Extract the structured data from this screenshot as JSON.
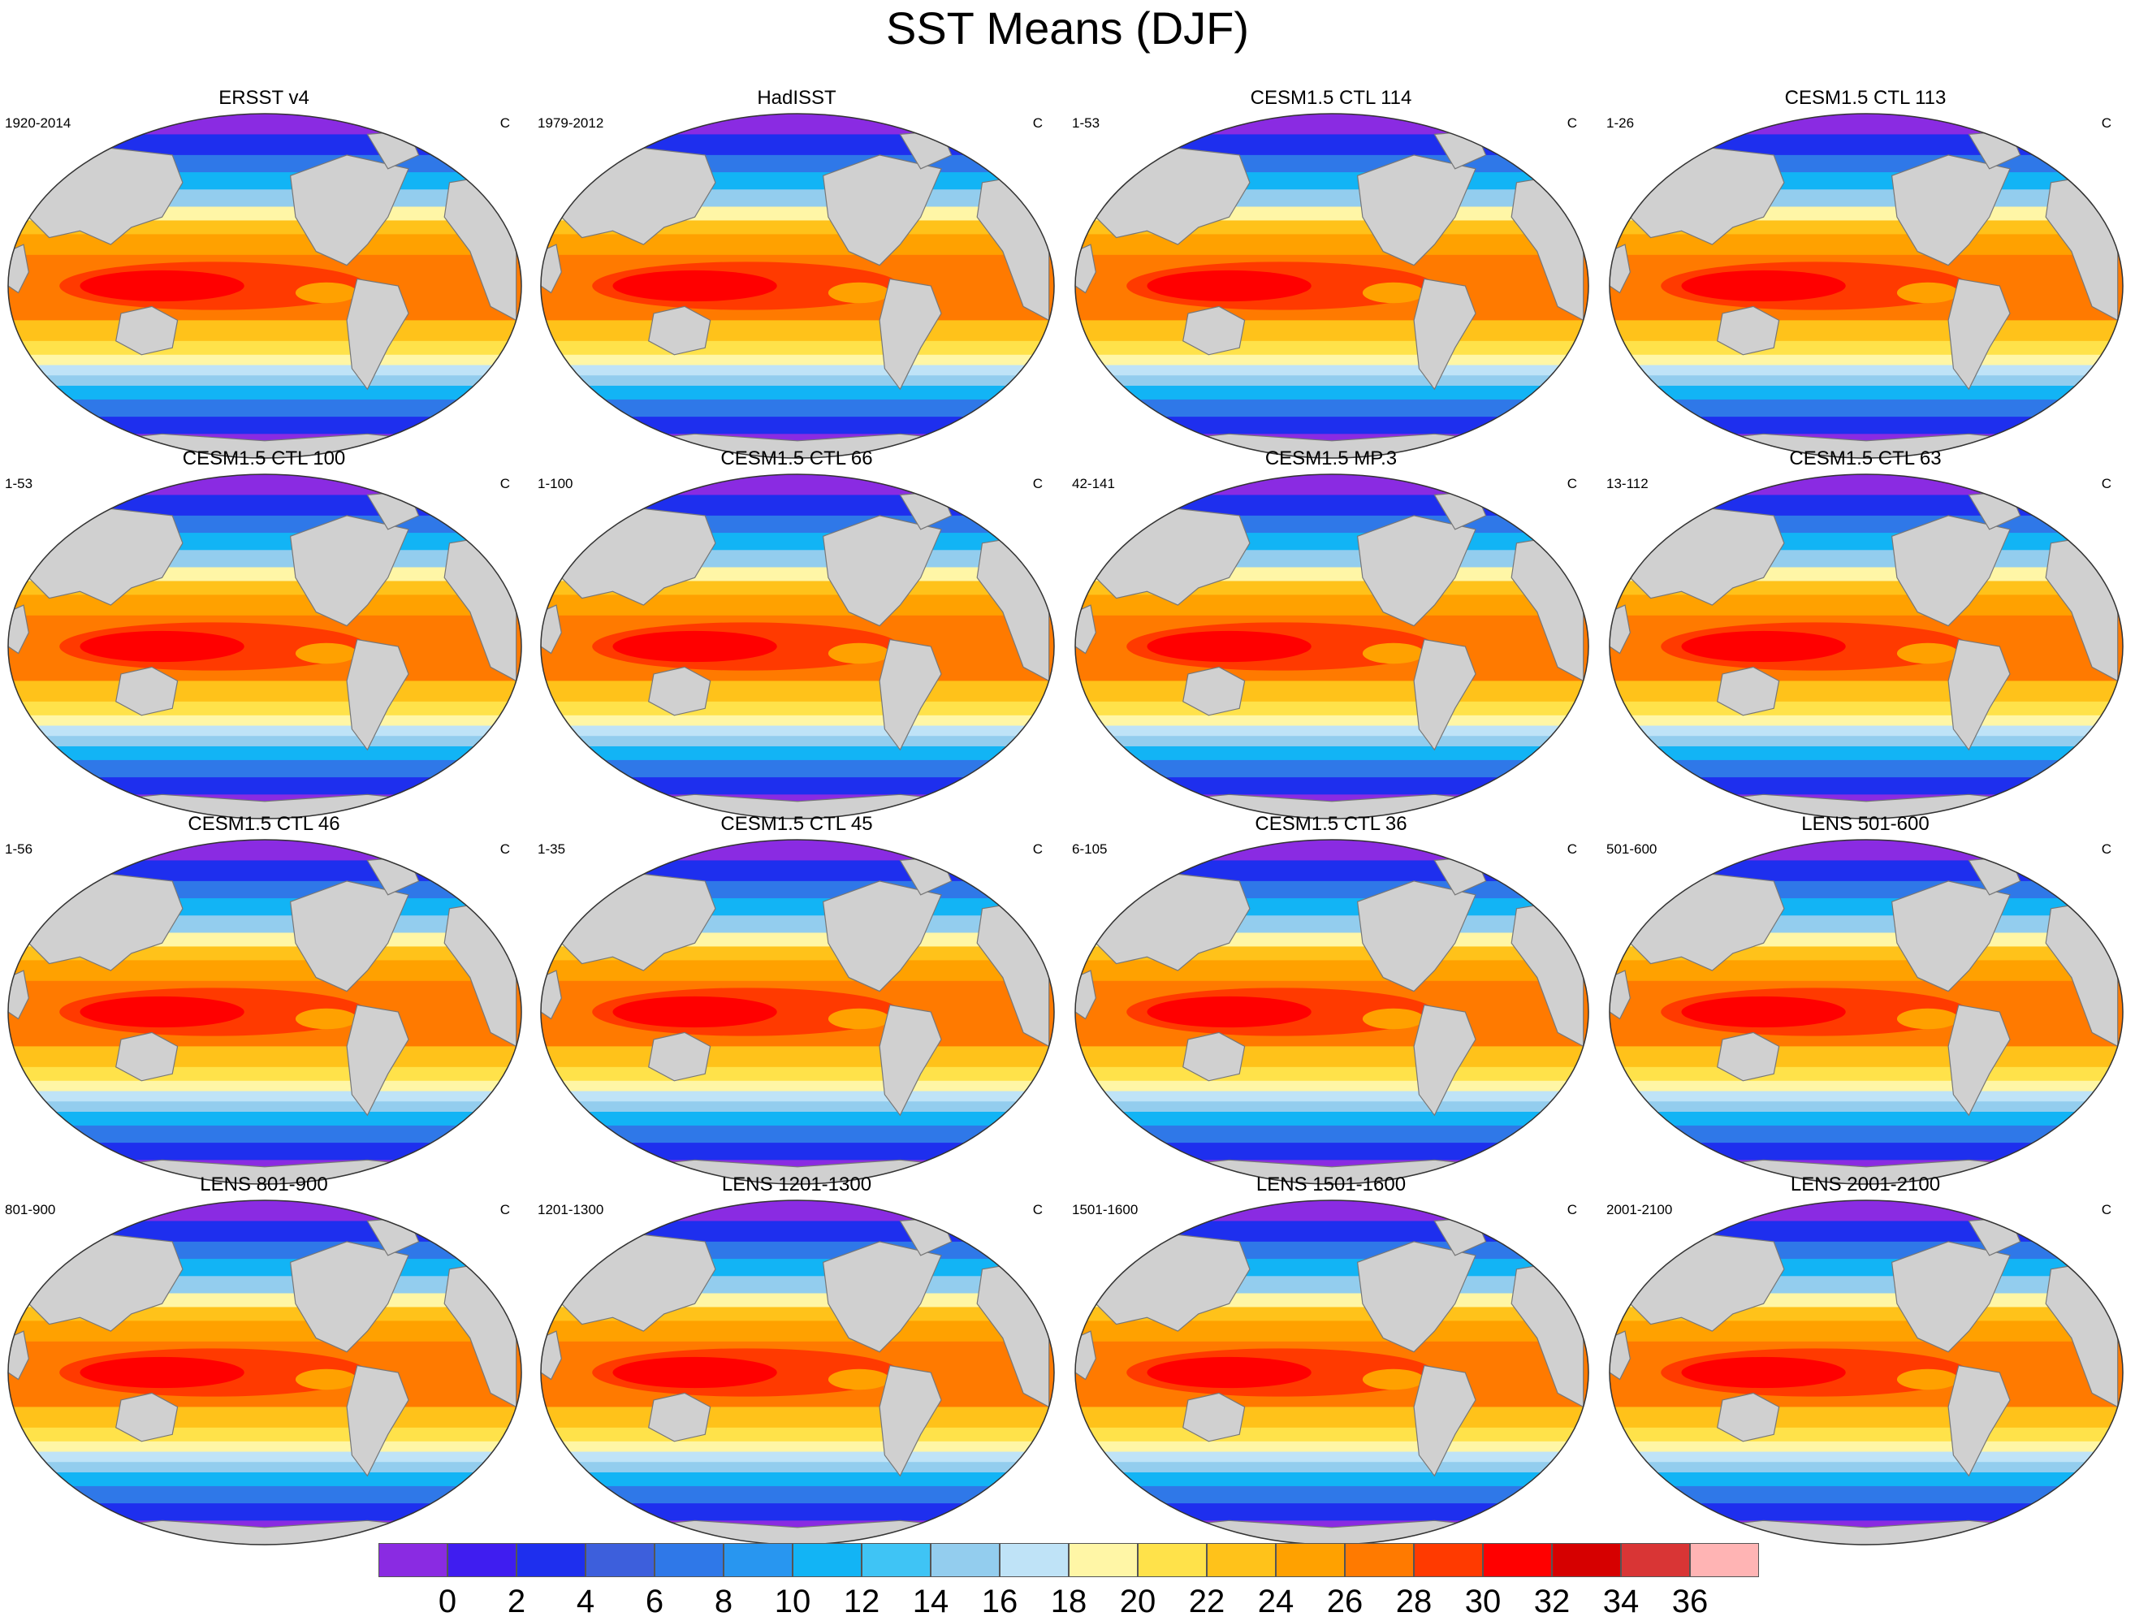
{
  "figure": {
    "title": "SST Means (DJF)"
  },
  "chart_data": {
    "type": "map-panels",
    "title": "SST Means (DJF)",
    "projection": "Robinson (global, Pacific-centered)",
    "variable": "sea surface temperature",
    "units": "C",
    "season": "DJF",
    "panels": [
      {
        "title": "ERSST v4",
        "range": "1920-2014",
        "units": "C"
      },
      {
        "title": "HadISST",
        "range": "1979-2012",
        "units": "C"
      },
      {
        "title": "CESM1.5 CTL 114",
        "range": "1-53",
        "units": "C"
      },
      {
        "title": "CESM1.5 CTL 113",
        "range": "1-26",
        "units": "C"
      },
      {
        "title": "CESM1.5 CTL 100",
        "range": "1-53",
        "units": "C"
      },
      {
        "title": "CESM1.5 CTL 66",
        "range": "1-100",
        "units": "C"
      },
      {
        "title": "CESM1.5 MP.3",
        "range": "42-141",
        "units": "C"
      },
      {
        "title": "CESM1.5 CTL 63",
        "range": "13-112",
        "units": "C"
      },
      {
        "title": "CESM1.5 CTL 46",
        "range": "1-56",
        "units": "C"
      },
      {
        "title": "CESM1.5 CTL 45",
        "range": "1-35",
        "units": "C"
      },
      {
        "title": "CESM1.5 CTL 36",
        "range": "6-105",
        "units": "C"
      },
      {
        "title": "LENS 501-600",
        "range": "501-600",
        "units": "C"
      },
      {
        "title": "LENS 801-900",
        "range": "801-900",
        "units": "C"
      },
      {
        "title": "LENS 1201-1300",
        "range": "1201-1300",
        "units": "C"
      },
      {
        "title": "LENS 1501-1600",
        "range": "1501-1600",
        "units": "C"
      },
      {
        "title": "LENS 2001-2100",
        "range": "2001-2100",
        "units": "C"
      }
    ],
    "colorbar": {
      "levels": [
        0,
        2,
        4,
        6,
        8,
        10,
        12,
        14,
        16,
        18,
        20,
        22,
        24,
        26,
        28,
        30,
        32,
        34,
        36
      ],
      "labels": [
        "0",
        "2",
        "4",
        "6",
        "8",
        "10",
        "12",
        "14",
        "16",
        "18",
        "20",
        "22",
        "24",
        "26",
        "28",
        "30",
        "32",
        "34",
        "36"
      ],
      "colors": [
        "#8a2be2",
        "#3f1df0",
        "#1e2fee",
        "#3d5fdc",
        "#2f78e8",
        "#2896f0",
        "#12b4f5",
        "#3fc4f5",
        "#93cdee",
        "#bfe3f7",
        "#fff6a6",
        "#ffe24a",
        "#ffc21a",
        "#ffa100",
        "#ff7a00",
        "#ff3a00",
        "#ff0000",
        "#d60000",
        "#d93535",
        "#ffb4b4"
      ]
    },
    "land_color": "#d0d0d0",
    "map_layout": {
      "equatorial_zonal_pattern": "warm pool west Pacific / Indian Ocean, cold poles"
    }
  }
}
